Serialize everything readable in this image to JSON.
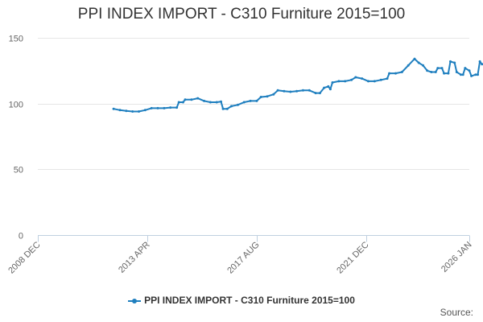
{
  "chart_data": {
    "type": "line",
    "title": "PPI INDEX IMPORT - C310 Furniture 2015=100",
    "xlabel": "",
    "ylabel": "",
    "ylim": [
      0,
      150
    ],
    "yticks": [
      0,
      50,
      100,
      150
    ],
    "xlim": [
      "2008-12",
      "2026-01"
    ],
    "xticks": [
      "2008 DEC",
      "2013 APR",
      "2017 AUG",
      "2021 DEC",
      "2026 JAN"
    ],
    "grid": true,
    "legend_position": "bottom",
    "series": [
      {
        "name": "PPI INDEX IMPORT - C310 Furniture 2015=100",
        "color": "#1f7fbf",
        "points": [
          [
            "2011-12",
            96
          ],
          [
            "2012-03",
            95
          ],
          [
            "2012-06",
            94.5
          ],
          [
            "2012-09",
            94
          ],
          [
            "2012-12",
            94
          ],
          [
            "2013-03",
            95
          ],
          [
            "2013-06",
            96.5
          ],
          [
            "2013-09",
            96.5
          ],
          [
            "2013-12",
            96.5
          ],
          [
            "2014-03",
            97
          ],
          [
            "2014-06",
            97
          ],
          [
            "2014-07",
            101
          ],
          [
            "2014-09",
            101
          ],
          [
            "2014-10",
            103
          ],
          [
            "2015-01",
            103
          ],
          [
            "2015-04",
            104
          ],
          [
            "2015-07",
            102
          ],
          [
            "2015-10",
            101
          ],
          [
            "2016-01",
            101
          ],
          [
            "2016-03",
            101.5
          ],
          [
            "2016-04",
            96
          ],
          [
            "2016-06",
            96
          ],
          [
            "2016-08",
            98
          ],
          [
            "2016-11",
            99
          ],
          [
            "2017-02",
            101
          ],
          [
            "2017-05",
            102
          ],
          [
            "2017-08",
            102
          ],
          [
            "2017-10",
            105
          ],
          [
            "2018-01",
            105.5
          ],
          [
            "2018-04",
            107
          ],
          [
            "2018-06",
            110
          ],
          [
            "2018-09",
            109.5
          ],
          [
            "2018-12",
            109
          ],
          [
            "2019-03",
            109.5
          ],
          [
            "2019-06",
            110
          ],
          [
            "2019-09",
            110
          ],
          [
            "2019-12",
            108
          ],
          [
            "2020-02",
            108
          ],
          [
            "2020-04",
            112
          ],
          [
            "2020-06",
            113
          ],
          [
            "2020-07",
            111
          ],
          [
            "2020-08",
            116
          ],
          [
            "2020-11",
            117
          ],
          [
            "2021-02",
            117
          ],
          [
            "2021-05",
            118
          ],
          [
            "2021-07",
            120
          ],
          [
            "2021-10",
            119
          ],
          [
            "2022-01",
            117
          ],
          [
            "2022-04",
            117
          ],
          [
            "2022-07",
            118
          ],
          [
            "2022-10",
            119
          ],
          [
            "2022-11",
            123
          ],
          [
            "2023-02",
            123
          ],
          [
            "2023-05",
            124
          ],
          [
            "2023-08",
            129
          ],
          [
            "2023-11",
            134
          ],
          [
            "2024-01",
            131
          ],
          [
            "2024-03",
            129
          ],
          [
            "2024-05",
            125
          ],
          [
            "2024-07",
            124
          ],
          [
            "2024-09",
            124
          ],
          [
            "2024-10",
            127
          ],
          [
            "2024-12",
            127
          ],
          [
            "2025-01",
            123
          ],
          [
            "2025-03",
            123
          ],
          [
            "2025-04",
            132
          ],
          [
            "2025-06",
            131
          ],
          [
            "2025-07",
            124
          ],
          [
            "2025-09",
            122
          ],
          [
            "2025-10",
            122
          ],
          [
            "2025-11",
            127
          ],
          [
            "2026-01",
            125
          ],
          [
            "2026-02",
            121
          ],
          [
            "2026-04",
            122
          ],
          [
            "2026-05",
            122
          ],
          [
            "2026-06",
            132
          ],
          [
            "2026-07",
            130
          ],
          [
            "2026-08",
            130
          ]
        ]
      }
    ]
  },
  "source_label": "Source:"
}
